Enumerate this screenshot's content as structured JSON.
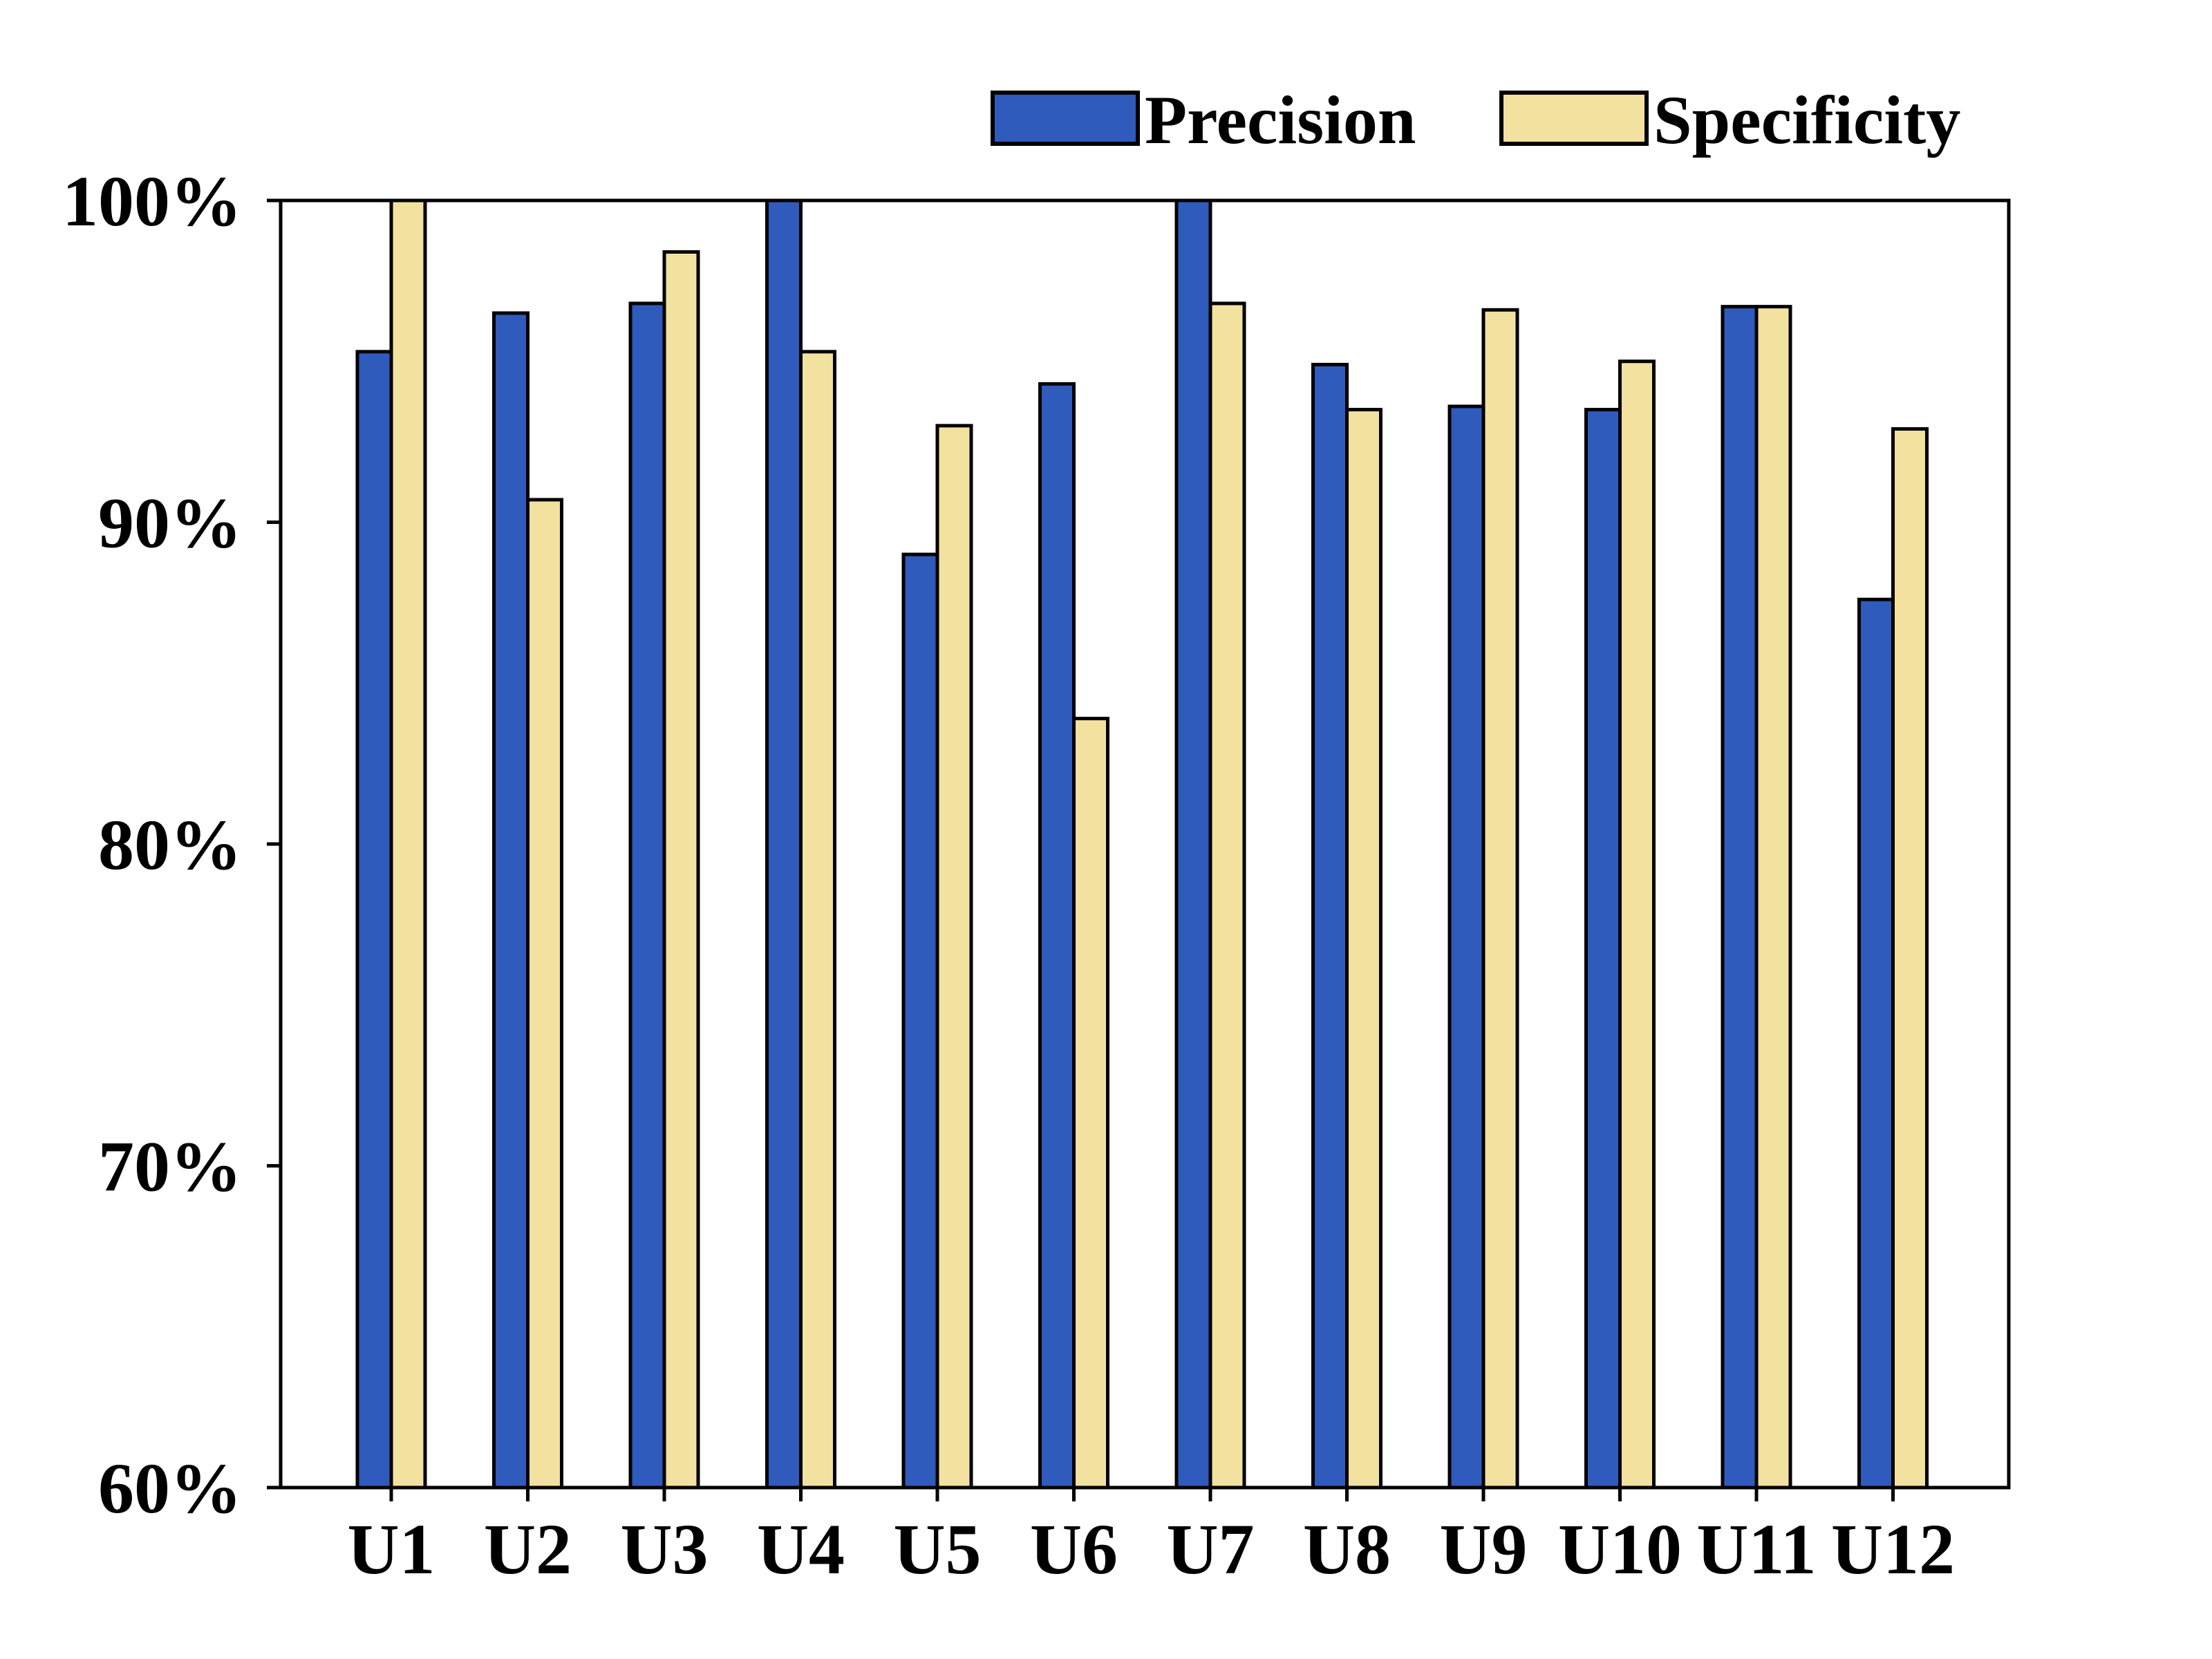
{
  "chart_data": {
    "type": "bar",
    "title": "",
    "xlabel": "",
    "ylabel": "",
    "categories": [
      "U1",
      "U2",
      "U3",
      "U4",
      "U5",
      "U6",
      "U7",
      "U8",
      "U9",
      "U10",
      "U11",
      "U12"
    ],
    "series": [
      {
        "name": "Precision",
        "color": "#2f5bbd",
        "values": [
          95.3,
          96.5,
          96.8,
          100.0,
          89.0,
          94.3,
          100.0,
          94.9,
          93.6,
          93.5,
          96.7,
          87.6
        ]
      },
      {
        "name": "Specificity",
        "color": "#f3e1a0",
        "values": [
          100.0,
          90.7,
          98.4,
          95.3,
          93.0,
          83.9,
          96.8,
          93.5,
          96.6,
          95.0,
          96.7,
          92.9
        ]
      }
    ],
    "ylim": [
      60,
      100
    ],
    "yticks": [
      60,
      70,
      80,
      90,
      100
    ],
    "ytick_labels": [
      "60%",
      "70%",
      "80%",
      "90%",
      "100%"
    ],
    "grid": false,
    "legend_position": "top-right",
    "edge_color": "#000000"
  }
}
